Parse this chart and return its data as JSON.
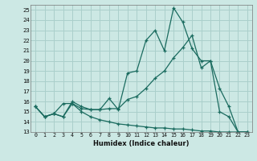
{
  "xlabel": "Humidex (Indice chaleur)",
  "background_color": "#cce8e4",
  "grid_color": "#aacfcb",
  "line_color": "#1a6b5f",
  "ylim": [
    13,
    25.5
  ],
  "xlim": [
    -0.5,
    23.5
  ],
  "yticks": [
    13,
    14,
    15,
    16,
    17,
    18,
    19,
    20,
    21,
    22,
    23,
    24,
    25
  ],
  "xticks": [
    0,
    1,
    2,
    3,
    4,
    5,
    6,
    7,
    8,
    9,
    10,
    11,
    12,
    13,
    14,
    15,
    16,
    17,
    18,
    19,
    20,
    21,
    22,
    23
  ],
  "line1_x": [
    0,
    1,
    2,
    3,
    4,
    5,
    6,
    7,
    8,
    9,
    10,
    11,
    12,
    13,
    14,
    15,
    16,
    17,
    18,
    19,
    20,
    21,
    22,
    23
  ],
  "line1_y": [
    15.5,
    14.5,
    14.8,
    14.5,
    16.0,
    15.5,
    15.2,
    15.2,
    16.3,
    15.2,
    18.8,
    19.0,
    22.0,
    23.0,
    21.0,
    25.2,
    23.8,
    21.2,
    20.0,
    20.0,
    15.0,
    14.5,
    13.0,
    13.0
  ],
  "line2_x": [
    0,
    1,
    2,
    3,
    4,
    5,
    6,
    7,
    8,
    9,
    10,
    11,
    12,
    13,
    14,
    15,
    16,
    17,
    18,
    19,
    20,
    21,
    22,
    23
  ],
  "line2_y": [
    15.5,
    14.5,
    14.8,
    15.8,
    15.8,
    15.3,
    15.2,
    15.2,
    15.3,
    15.3,
    16.2,
    16.5,
    17.3,
    18.3,
    19.0,
    20.3,
    21.3,
    22.5,
    19.3,
    20.0,
    17.3,
    15.5,
    13.0,
    13.0
  ],
  "line3_x": [
    0,
    1,
    2,
    3,
    4,
    5,
    6,
    7,
    8,
    9,
    10,
    11,
    12,
    13,
    14,
    15,
    16,
    17,
    18,
    19,
    20,
    21,
    22,
    23
  ],
  "line3_y": [
    15.5,
    14.5,
    14.8,
    14.5,
    15.8,
    15.0,
    14.5,
    14.2,
    14.0,
    13.8,
    13.7,
    13.6,
    13.5,
    13.4,
    13.4,
    13.3,
    13.3,
    13.2,
    13.1,
    13.1,
    13.0,
    13.0,
    13.0,
    13.0
  ]
}
